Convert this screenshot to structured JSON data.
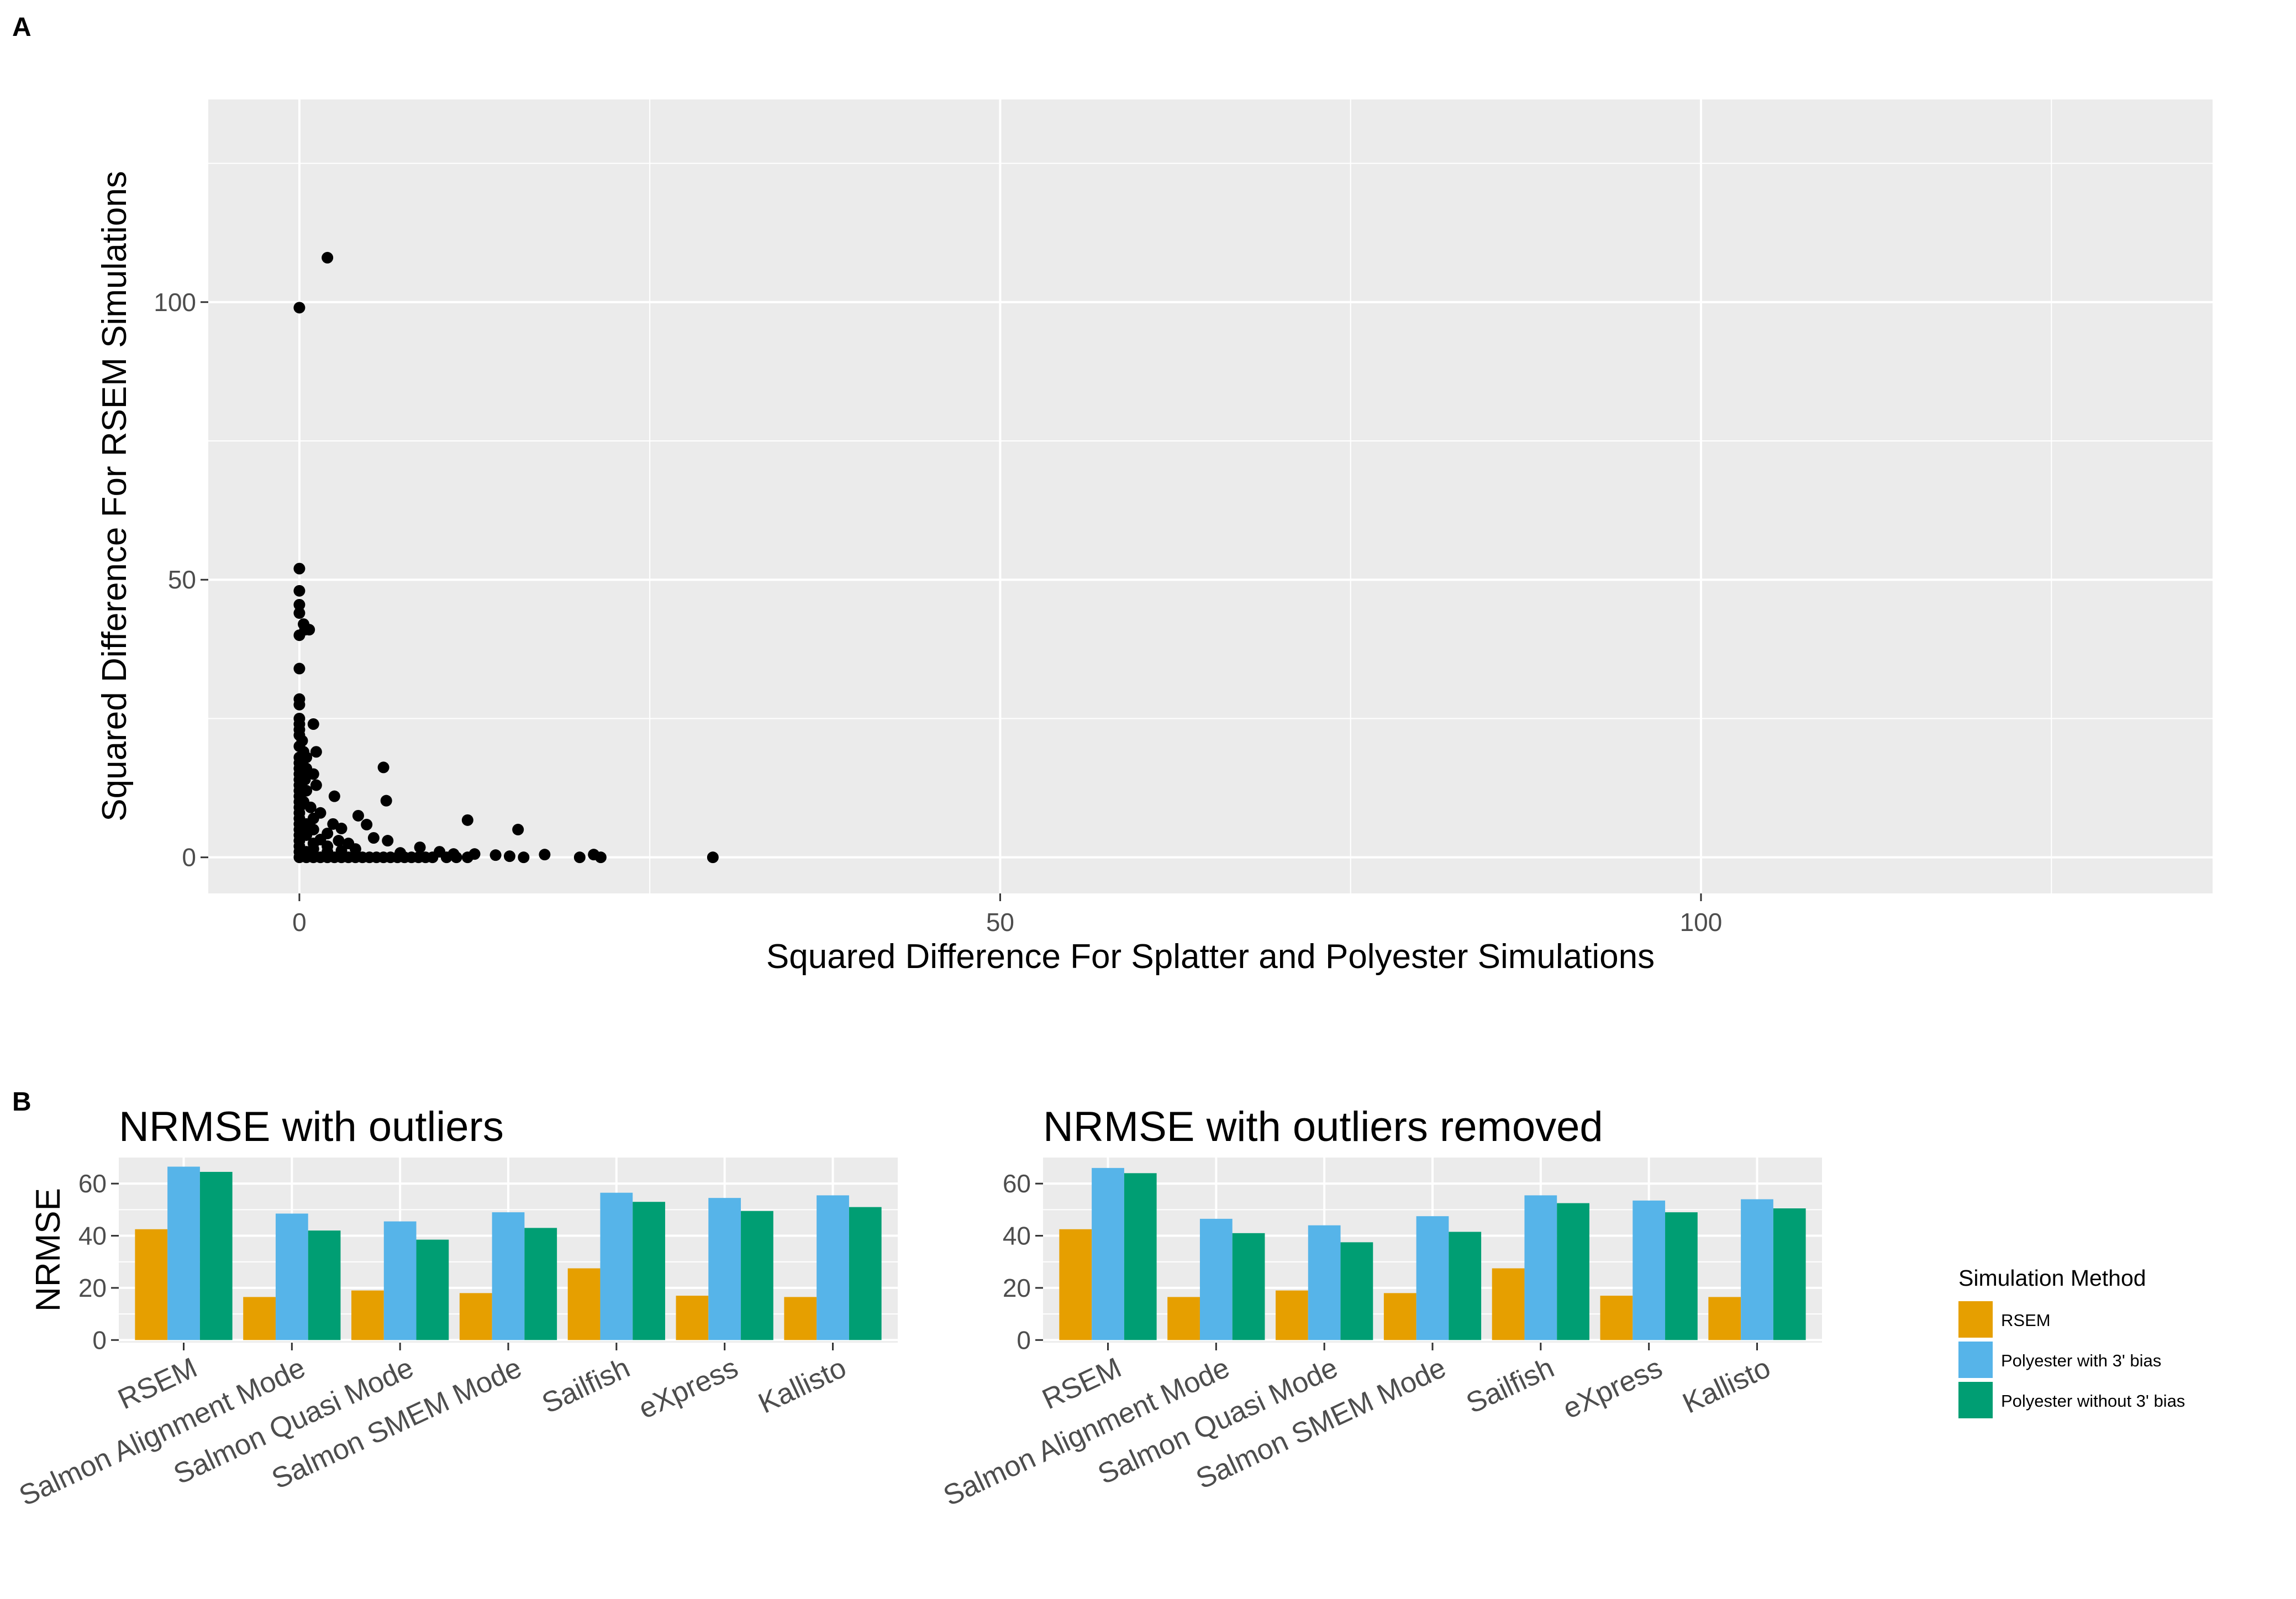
{
  "panels": {
    "a_label": "A",
    "b_label": "B"
  },
  "colors": {
    "panel_bg": "#EBEBEB",
    "grid": "#FFFFFF",
    "point": "#000000",
    "tick_text": "#4D4D4D",
    "rsem": "#E69F00",
    "poly_bias": "#56B4E9",
    "poly_nobias": "#009E73"
  },
  "chart_data": [
    {
      "type": "scatter",
      "title": "",
      "xlabel": "Squared Difference For Splatter and Polyester Simulations",
      "ylabel": "Squared Difference For RSEM Simulations",
      "xlim": [
        -6.5,
        136.5
      ],
      "ylim": [
        -6.5,
        136.5
      ],
      "xticks": [
        0,
        50,
        100
      ],
      "yticks": [
        0,
        50,
        100
      ],
      "grid": true,
      "points": [
        [
          0,
          99
        ],
        [
          2,
          108
        ],
        [
          0,
          52
        ],
        [
          0,
          48
        ],
        [
          0,
          45.5
        ],
        [
          0,
          44
        ],
        [
          0.3,
          42
        ],
        [
          0.4,
          41
        ],
        [
          0.7,
          41
        ],
        [
          0,
          40
        ],
        [
          0,
          34
        ],
        [
          0,
          28.5
        ],
        [
          0,
          27.5
        ],
        [
          0,
          25
        ],
        [
          0,
          24
        ],
        [
          1,
          24
        ],
        [
          0,
          23
        ],
        [
          0,
          22
        ],
        [
          0.2,
          21
        ],
        [
          0,
          20
        ],
        [
          0.3,
          19
        ],
        [
          1.2,
          19
        ],
        [
          0,
          18
        ],
        [
          0.5,
          18
        ],
        [
          0,
          17
        ],
        [
          0,
          16
        ],
        [
          0.5,
          16
        ],
        [
          0,
          15
        ],
        [
          0.5,
          15
        ],
        [
          1,
          15
        ],
        [
          0,
          14
        ],
        [
          0.4,
          14
        ],
        [
          0,
          13
        ],
        [
          1.2,
          13
        ],
        [
          0,
          12
        ],
        [
          0.5,
          12
        ],
        [
          0,
          11
        ],
        [
          2.5,
          11
        ],
        [
          0,
          10
        ],
        [
          0.3,
          10
        ],
        [
          0,
          9
        ],
        [
          0.8,
          9
        ],
        [
          0,
          8
        ],
        [
          1.5,
          8
        ],
        [
          0,
          7
        ],
        [
          1,
          7
        ],
        [
          4.2,
          7.5
        ],
        [
          0,
          6
        ],
        [
          0.5,
          6
        ],
        [
          2.4,
          6
        ],
        [
          4.8,
          5.9
        ],
        [
          0,
          5
        ],
        [
          1,
          5
        ],
        [
          3,
          5.2
        ],
        [
          0,
          4
        ],
        [
          0.5,
          4
        ],
        [
          2,
          4.3
        ],
        [
          0,
          3
        ],
        [
          1.5,
          3.2
        ],
        [
          2.8,
          3
        ],
        [
          0,
          2
        ],
        [
          1,
          2.5
        ],
        [
          2,
          2
        ],
        [
          3.5,
          2.5
        ],
        [
          0,
          1
        ],
        [
          0.5,
          1
        ],
        [
          1,
          1.5
        ],
        [
          2,
          1
        ],
        [
          3,
          1.2
        ],
        [
          4,
          1.5
        ],
        [
          0,
          0
        ],
        [
          0.5,
          0
        ],
        [
          1,
          0
        ],
        [
          1.5,
          0
        ],
        [
          2,
          0
        ],
        [
          2.5,
          0
        ],
        [
          3,
          0
        ],
        [
          3.5,
          0
        ],
        [
          4,
          0
        ],
        [
          4.5,
          0
        ],
        [
          5,
          0
        ],
        [
          5.5,
          0
        ],
        [
          6,
          0
        ],
        [
          6.5,
          0
        ],
        [
          7,
          0
        ],
        [
          7.5,
          0
        ],
        [
          8,
          0
        ],
        [
          8.5,
          0
        ],
        [
          9,
          0
        ],
        [
          9.5,
          0
        ],
        [
          10.5,
          0
        ],
        [
          11.2,
          0
        ],
        [
          12,
          0
        ],
        [
          12.5,
          0.6
        ],
        [
          14,
          0.4
        ],
        [
          15,
          0.2
        ],
        [
          16,
          0
        ],
        [
          17.5,
          0.5
        ],
        [
          20,
          0
        ],
        [
          21,
          0.5
        ],
        [
          21.5,
          0
        ],
        [
          29.5,
          0
        ],
        [
          6,
          16.2
        ],
        [
          6.2,
          10.2
        ],
        [
          12,
          6.7
        ],
        [
          15.6,
          5
        ],
        [
          5.3,
          3.5
        ],
        [
          6.3,
          3
        ],
        [
          7.2,
          0.8
        ],
        [
          8.6,
          1.8
        ],
        [
          10,
          1
        ],
        [
          11,
          0.6
        ]
      ]
    },
    {
      "type": "bar",
      "title": "NRMSE with outliers",
      "xlabel": "",
      "ylabel": "NRMSE",
      "ylim": [
        -1,
        70
      ],
      "yticks": [
        0,
        20,
        40,
        60
      ],
      "categories": [
        "RSEM",
        "Salmon Alignment Mode",
        "Salmon Quasi Mode",
        "Salmon SMEM Mode",
        "Sailfish",
        "eXpress",
        "Kallisto"
      ],
      "series": [
        {
          "name": "RSEM",
          "values": [
            42.5,
            16.5,
            19,
            18,
            27.5,
            17,
            16.5
          ]
        },
        {
          "name": "Polyester with 3' bias",
          "values": [
            66.5,
            48.5,
            45.5,
            49,
            56.5,
            54.5,
            55.5
          ]
        },
        {
          "name": "Polyester without 3' bias",
          "values": [
            64.5,
            42,
            38.5,
            43,
            53,
            49.5,
            51
          ]
        }
      ]
    },
    {
      "type": "bar",
      "title": "NRMSE with outliers removed",
      "xlabel": "",
      "ylabel": "",
      "ylim": [
        -1,
        70
      ],
      "yticks": [
        0,
        20,
        40,
        60
      ],
      "categories": [
        "RSEM",
        "Salmon Alignment Mode",
        "Salmon Quasi Mode",
        "Salmon SMEM Mode",
        "Sailfish",
        "eXpress",
        "Kallisto"
      ],
      "series": [
        {
          "name": "RSEM",
          "values": [
            42.5,
            16.5,
            19,
            18,
            27.5,
            17,
            16.5
          ]
        },
        {
          "name": "Polyester with 3' bias",
          "values": [
            66,
            46.5,
            44,
            47.5,
            55.5,
            53.5,
            54
          ]
        },
        {
          "name": "Polyester without 3' bias",
          "values": [
            64,
            41,
            37.5,
            41.5,
            52.5,
            49,
            50.5
          ]
        }
      ]
    }
  ],
  "legend": {
    "title": "Simulation Method",
    "placement": "right",
    "items": [
      {
        "label": "RSEM",
        "color": "#E69F00"
      },
      {
        "label": "Polyester with 3' bias",
        "color": "#56B4E9"
      },
      {
        "label": "Polyester without 3' bias",
        "color": "#009E73"
      }
    ]
  }
}
